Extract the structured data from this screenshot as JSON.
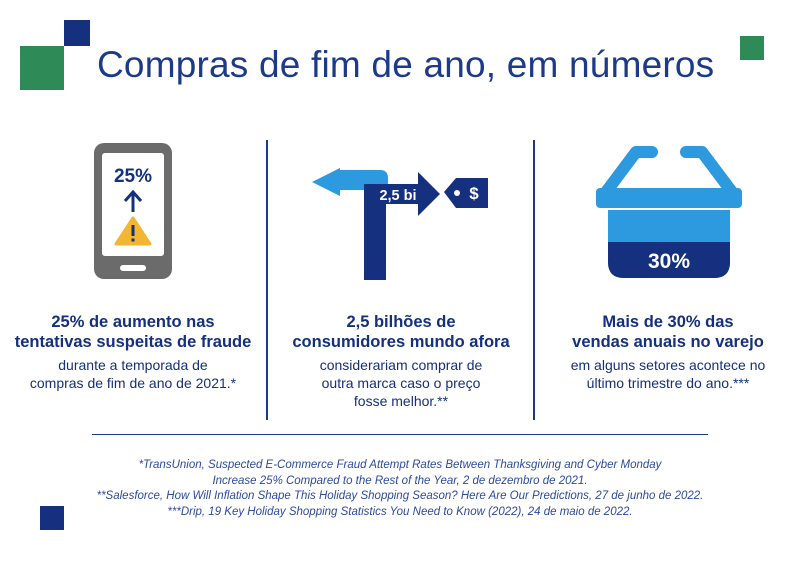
{
  "title": "Compras de fim de ano, em números",
  "stats": [
    {
      "graphic_label": "25%",
      "headline": [
        "25% de aumento nas",
        "tentativas suspeitas de fraude"
      ],
      "body": [
        "durante a temporada de",
        "compras de fim de ano de 2021.*"
      ]
    },
    {
      "graphic_label": "2,5 bi",
      "tag_symbol": "$",
      "headline": [
        "2,5 bilhões de",
        "consumidores mundo afora"
      ],
      "body": [
        "considerariam comprar de",
        "outra marca caso o preço",
        "fosse melhor.**"
      ]
    },
    {
      "graphic_label": "30%",
      "headline": [
        "Mais de 30% das",
        "vendas anuais no varejo"
      ],
      "body": [
        "em alguns setores acontece no",
        "último trimestre do ano.***"
      ]
    }
  ],
  "footnotes": [
    "*TransUnion, Suspected E-Commerce Fraud Attempt Rates Between Thanksgiving and Cyber Monday",
    "Increase 25% Compared to the Rest of the Year, 2 de dezembro de 2021.",
    "**Salesforce, How Will Inflation Shape This Holiday Shopping Season? Here Are Our Predictions, 27 de junho de 2022.",
    "***Drip, 19 Key Holiday Shopping Statistics You Need to Know (2022), 24 de maio de 2022."
  ],
  "icons": {
    "col1": "smartphone-warning-icon",
    "col2": "turn-arrow-price-tag-icon",
    "col3": "shopping-basket-icon"
  },
  "colors": {
    "navy": "#14307e",
    "blue": "#1d3a8a",
    "light_blue": "#2d9ae0",
    "green": "#2e8b57",
    "gray": "#6b6b6b",
    "warning": "#f2b632"
  }
}
